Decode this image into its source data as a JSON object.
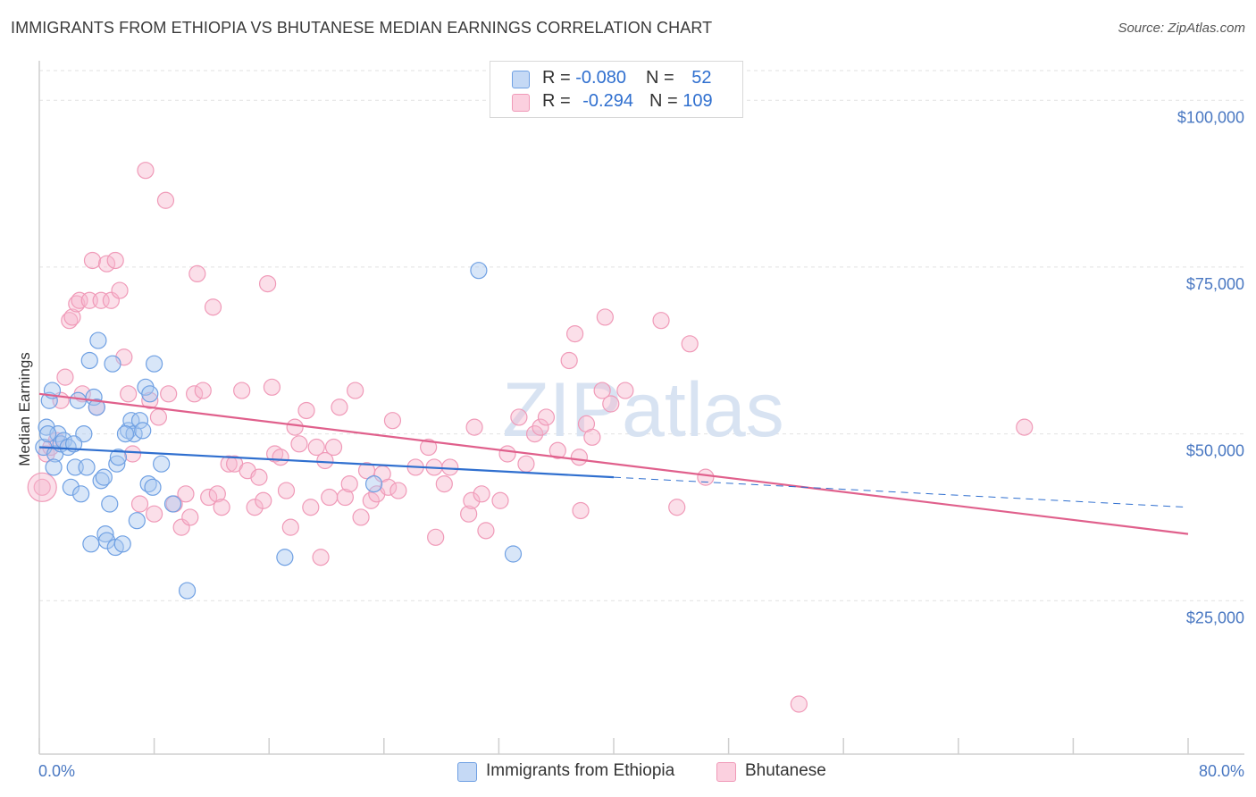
{
  "title": "IMMIGRANTS FROM ETHIOPIA VS BHUTANESE MEDIAN EARNINGS CORRELATION CHART",
  "source": "Source: ZipAtlas.com",
  "watermark": "ZIPatlas",
  "legend": {
    "rows": [
      {
        "r_label": "R = ",
        "r_value": "-0.080",
        "n_label": "N = ",
        "n_value": "52"
      },
      {
        "r_label": "R = ",
        "r_value": "-0.294",
        "n_label": "N = ",
        "n_value": "109"
      }
    ]
  },
  "bottom_legend": [
    "Immigrants from Ethiopia",
    "Bhutanese"
  ],
  "chart_data": {
    "type": "scatter",
    "title": "IMMIGRANTS FROM ETHIOPIA VS BHUTANESE MEDIAN EARNINGS CORRELATION CHART",
    "xlabel": "",
    "ylabel": "Median Earnings",
    "xlim": [
      0,
      80
    ],
    "ylim": [
      2000,
      107000
    ],
    "x_tick_labels": [
      "0.0%",
      "80.0%"
    ],
    "y_ticks": [
      25000,
      50000,
      75000,
      100000
    ],
    "y_tick_labels": [
      "$25,000",
      "$50,000",
      "$75,000",
      "$100,000"
    ],
    "colors": {
      "ethiopia": "#6fa0e3",
      "bhutanese": "#f09ab8",
      "ethiopia_line": "#2f6fcf",
      "bhutanese_line": "#e0608c",
      "axis_text": "#4a78c2"
    },
    "series": [
      {
        "name": "Immigrants from Ethiopia",
        "color": "#6fa0e3",
        "trend": {
          "x0": 0,
          "y0": 48000,
          "x1": 40,
          "y1": 43500,
          "dash_x1": 80,
          "dash_y1": 39000
        },
        "points": [
          [
            0.3,
            48000
          ],
          [
            0.5,
            51000
          ],
          [
            0.7,
            55000
          ],
          [
            0.9,
            56500
          ],
          [
            1.1,
            47000
          ],
          [
            1.3,
            50000
          ],
          [
            1.5,
            48500
          ],
          [
            1.7,
            49000
          ],
          [
            2.0,
            48000
          ],
          [
            2.2,
            42000
          ],
          [
            2.5,
            45000
          ],
          [
            2.7,
            55000
          ],
          [
            2.9,
            41000
          ],
          [
            3.1,
            50000
          ],
          [
            3.3,
            45000
          ],
          [
            3.5,
            61000
          ],
          [
            3.6,
            33500
          ],
          [
            3.8,
            55500
          ],
          [
            4.0,
            54000
          ],
          [
            4.1,
            64000
          ],
          [
            4.3,
            43000
          ],
          [
            4.5,
            43500
          ],
          [
            4.6,
            35000
          ],
          [
            4.7,
            34000
          ],
          [
            4.9,
            39500
          ],
          [
            5.1,
            60500
          ],
          [
            5.3,
            33000
          ],
          [
            5.4,
            45500
          ],
          [
            5.5,
            46500
          ],
          [
            5.8,
            33500
          ],
          [
            6.2,
            50500
          ],
          [
            6.4,
            52000
          ],
          [
            6.6,
            50000
          ],
          [
            6.8,
            37000
          ],
          [
            7.0,
            52000
          ],
          [
            7.2,
            50500
          ],
          [
            7.4,
            57000
          ],
          [
            7.6,
            42500
          ],
          [
            7.7,
            56000
          ],
          [
            7.9,
            42000
          ],
          [
            8.0,
            60500
          ],
          [
            8.5,
            45500
          ],
          [
            9.3,
            39500
          ],
          [
            10.3,
            26500
          ],
          [
            17.1,
            31500
          ],
          [
            23.3,
            42500
          ],
          [
            30.6,
            74500
          ],
          [
            33.0,
            32000
          ],
          [
            1.0,
            45000
          ],
          [
            0.6,
            50000
          ],
          [
            2.4,
            48500
          ],
          [
            6.0,
            50000
          ]
        ]
      },
      {
        "name": "Bhutanese",
        "color": "#f09ab8",
        "trend": {
          "x0": 0,
          "y0": 56000,
          "x1": 80,
          "y1": 35000
        },
        "points": [
          [
            0.2,
            42000
          ],
          [
            0.5,
            47000
          ],
          [
            0.8,
            48000
          ],
          [
            1.2,
            49000
          ],
          [
            1.5,
            55000
          ],
          [
            1.8,
            58500
          ],
          [
            2.1,
            67000
          ],
          [
            2.3,
            67500
          ],
          [
            2.6,
            69500
          ],
          [
            2.8,
            70000
          ],
          [
            3.0,
            56000
          ],
          [
            3.5,
            70000
          ],
          [
            3.7,
            76000
          ],
          [
            4.0,
            54000
          ],
          [
            4.3,
            70000
          ],
          [
            4.7,
            75500
          ],
          [
            5.0,
            70000
          ],
          [
            5.3,
            76000
          ],
          [
            5.6,
            71500
          ],
          [
            5.9,
            61500
          ],
          [
            6.2,
            56000
          ],
          [
            6.5,
            47000
          ],
          [
            7.0,
            39500
          ],
          [
            7.4,
            89500
          ],
          [
            7.7,
            55000
          ],
          [
            8.0,
            38000
          ],
          [
            8.3,
            52500
          ],
          [
            8.8,
            85000
          ],
          [
            9.0,
            56000
          ],
          [
            9.4,
            39500
          ],
          [
            9.9,
            36000
          ],
          [
            10.2,
            41000
          ],
          [
            10.5,
            37500
          ],
          [
            10.8,
            56000
          ],
          [
            11.0,
            74000
          ],
          [
            11.4,
            56500
          ],
          [
            11.8,
            40500
          ],
          [
            12.1,
            69000
          ],
          [
            12.4,
            41000
          ],
          [
            12.7,
            39000
          ],
          [
            13.2,
            45500
          ],
          [
            13.6,
            45500
          ],
          [
            14.1,
            56500
          ],
          [
            14.5,
            44500
          ],
          [
            15.0,
            39000
          ],
          [
            15.3,
            43500
          ],
          [
            15.6,
            40000
          ],
          [
            15.9,
            72500
          ],
          [
            16.2,
            57000
          ],
          [
            16.4,
            47000
          ],
          [
            16.8,
            46500
          ],
          [
            17.2,
            41500
          ],
          [
            17.5,
            36000
          ],
          [
            17.8,
            51000
          ],
          [
            18.1,
            48500
          ],
          [
            18.6,
            53500
          ],
          [
            18.9,
            39000
          ],
          [
            19.3,
            48000
          ],
          [
            19.6,
            31500
          ],
          [
            19.9,
            46000
          ],
          [
            20.2,
            40500
          ],
          [
            20.5,
            48000
          ],
          [
            20.9,
            54000
          ],
          [
            21.3,
            40500
          ],
          [
            21.6,
            42500
          ],
          [
            22.0,
            56500
          ],
          [
            22.4,
            37500
          ],
          [
            22.8,
            44500
          ],
          [
            23.1,
            40000
          ],
          [
            23.5,
            41000
          ],
          [
            23.9,
            44000
          ],
          [
            24.3,
            42000
          ],
          [
            24.6,
            52000
          ],
          [
            25.0,
            41500
          ],
          [
            26.2,
            45000
          ],
          [
            27.1,
            48000
          ],
          [
            27.5,
            45000
          ],
          [
            27.6,
            34500
          ],
          [
            28.2,
            42500
          ],
          [
            28.6,
            45000
          ],
          [
            29.9,
            38000
          ],
          [
            30.3,
            51000
          ],
          [
            30.1,
            40000
          ],
          [
            30.8,
            41000
          ],
          [
            31.1,
            35500
          ],
          [
            32.1,
            40000
          ],
          [
            32.6,
            47000
          ],
          [
            33.4,
            52500
          ],
          [
            33.9,
            45500
          ],
          [
            34.5,
            50000
          ],
          [
            34.9,
            51000
          ],
          [
            35.3,
            52500
          ],
          [
            36.1,
            47500
          ],
          [
            36.9,
            61000
          ],
          [
            37.3,
            65000
          ],
          [
            37.6,
            46500
          ],
          [
            37.7,
            38500
          ],
          [
            38.1,
            51500
          ],
          [
            38.5,
            49500
          ],
          [
            39.2,
            56500
          ],
          [
            39.8,
            54500
          ],
          [
            39.4,
            67500
          ],
          [
            40.8,
            56500
          ],
          [
            43.3,
            67000
          ],
          [
            44.4,
            39000
          ],
          [
            45.3,
            63500
          ],
          [
            46.4,
            43500
          ],
          [
            52.9,
            9500
          ],
          [
            68.6,
            51000
          ]
        ]
      }
    ]
  }
}
